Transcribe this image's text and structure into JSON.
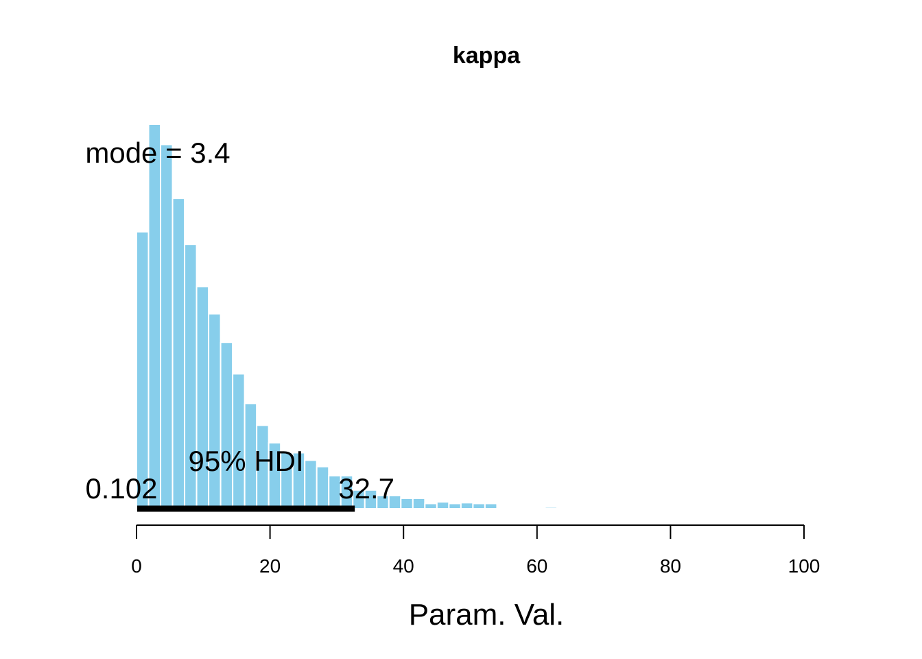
{
  "chart_data": {
    "type": "bar",
    "title": "kappa",
    "xlabel": "Param. Val.",
    "ylabel": "",
    "xlim": [
      0,
      100
    ],
    "xticks": [
      "0",
      "20",
      "40",
      "60",
      "80",
      "100"
    ],
    "bar_color": "#87CEEB",
    "bar_edge_color": "#ffffff",
    "bin_width": 1.8,
    "bins": [
      {
        "start": 0.0,
        "value": 0.0698
      },
      {
        "start": 1.8,
        "value": 0.0969
      },
      {
        "start": 3.6,
        "value": 0.0918
      },
      {
        "start": 5.4,
        "value": 0.0782
      },
      {
        "start": 7.2,
        "value": 0.0666
      },
      {
        "start": 9.0,
        "value": 0.056
      },
      {
        "start": 10.8,
        "value": 0.0491
      },
      {
        "start": 12.6,
        "value": 0.0419
      },
      {
        "start": 14.4,
        "value": 0.034
      },
      {
        "start": 16.2,
        "value": 0.0265
      },
      {
        "start": 18.0,
        "value": 0.021
      },
      {
        "start": 19.8,
        "value": 0.0166
      },
      {
        "start": 21.6,
        "value": 0.0141
      },
      {
        "start": 23.4,
        "value": 0.0141
      },
      {
        "start": 25.2,
        "value": 0.0122
      },
      {
        "start": 27.0,
        "value": 0.0106
      },
      {
        "start": 28.8,
        "value": 0.0083
      },
      {
        "start": 30.6,
        "value": 0.0083
      },
      {
        "start": 32.4,
        "value": 0.0047
      },
      {
        "start": 34.2,
        "value": 0.0047
      },
      {
        "start": 36.0,
        "value": 0.0033
      },
      {
        "start": 37.8,
        "value": 0.0033
      },
      {
        "start": 39.6,
        "value": 0.0026
      },
      {
        "start": 41.4,
        "value": 0.0026
      },
      {
        "start": 43.2,
        "value": 0.0013
      },
      {
        "start": 45.0,
        "value": 0.0017
      },
      {
        "start": 46.8,
        "value": 0.0013
      },
      {
        "start": 48.6,
        "value": 0.0015
      },
      {
        "start": 50.4,
        "value": 0.0013
      },
      {
        "start": 52.2,
        "value": 0.0013
      },
      {
        "start": 61.2,
        "value": 0.0004
      }
    ],
    "ylim": [
      0,
      0.1
    ],
    "mode_label": "mode = 3.4",
    "hdi": {
      "label": "95% HDI",
      "low": 0.102,
      "high": 32.7,
      "low_label": "0.102",
      "high_label": "32.7"
    }
  }
}
